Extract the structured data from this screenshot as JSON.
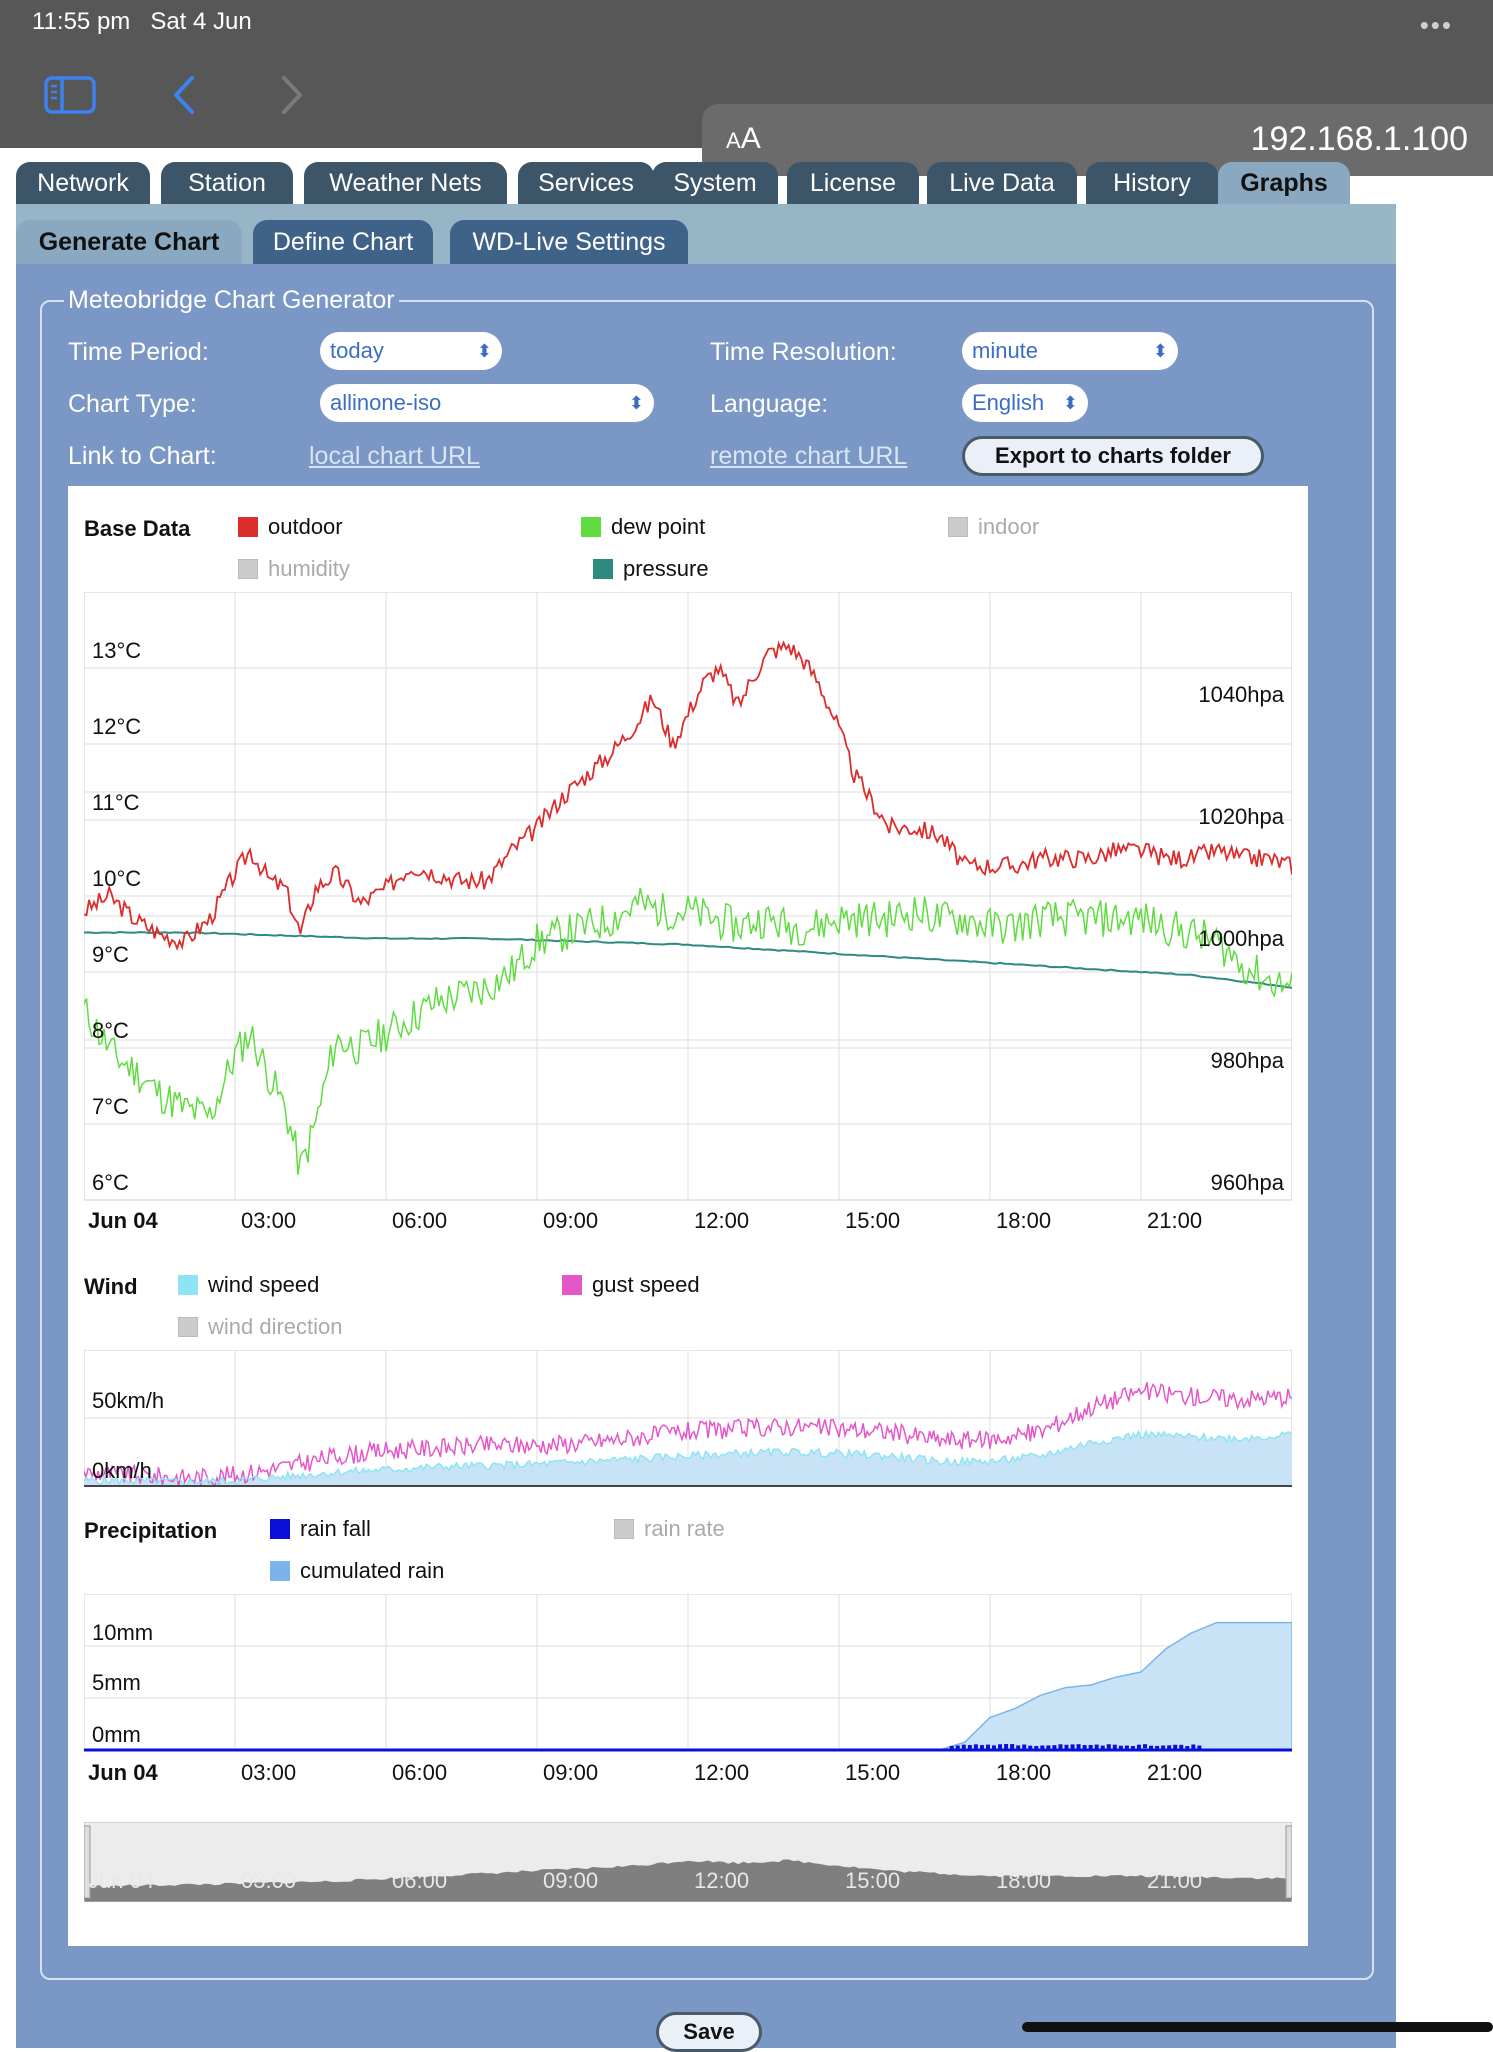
{
  "status": {
    "time": "11:55 pm",
    "date": "Sat 4 Jun"
  },
  "browser": {
    "aa_small": "A",
    "aa_large": "A",
    "url": "192.168.1.100"
  },
  "tabs": [
    "Network",
    "Station",
    "Weather Nets",
    "Services",
    "System",
    "License",
    "Live Data",
    "History",
    "Graphs"
  ],
  "active_tab": "Graphs",
  "subtabs": [
    "Generate Chart",
    "Define Chart",
    "WD-Live Settings"
  ],
  "active_subtab": "Generate Chart",
  "form": {
    "legend": "Meteobridge Chart Generator",
    "time_period_label": "Time Period:",
    "time_period_value": "today",
    "chart_type_label": "Chart Type:",
    "chart_type_value": "allinone-iso",
    "link_label": "Link to Chart:",
    "local_link": "local chart URL",
    "time_res_label": "Time Resolution:",
    "time_res_value": "minute",
    "language_label": "Language:",
    "language_value": "English",
    "remote_link": "remote chart URL",
    "export_button": "Export to charts folder",
    "save_button": "Save"
  },
  "colors": {
    "outdoor": "#dd2c2c",
    "dew_point": "#5fdc40",
    "pressure": "#2e8a80",
    "wind_speed": "#8ee3f5",
    "gust_speed": "#e457c8",
    "rain_fall": "#0a10d8",
    "cumulated_rain": "#7bb4ec"
  },
  "chart_data": [
    {
      "type": "line",
      "title": "Base Data",
      "legend": [
        "outdoor",
        "dew point",
        "indoor",
        "humidity",
        "pressure"
      ],
      "legend_disabled": [
        "indoor",
        "humidity"
      ],
      "ylabels_left": [
        "13°C",
        "12°C",
        "11°C",
        "10°C",
        "9°C",
        "8°C",
        "7°C",
        "6°C"
      ],
      "ylabels_right": [
        "1040hpa",
        "1020hpa",
        "1000hpa",
        "980hpa",
        "960hpa"
      ],
      "xlabels": [
        "Jun 04",
        "03:00",
        "06:00",
        "09:00",
        "12:00",
        "15:00",
        "18:00",
        "21:00"
      ],
      "ylim": [
        6,
        14
      ],
      "y2lim": [
        960,
        1060
      ],
      "xlim": [
        0,
        24
      ],
      "series": [
        {
          "name": "outdoor",
          "x": [
            0,
            0.5,
            1,
            1.5,
            2,
            2.5,
            3,
            3.3,
            3.7,
            4,
            4.3,
            4.6,
            5,
            5.5,
            6,
            6.5,
            7,
            7.5,
            8,
            8.5,
            9,
            9.5,
            10,
            10.5,
            11,
            11.3,
            11.7,
            12,
            12.3,
            12.6,
            13,
            13.3,
            13.6,
            14,
            14.3,
            14.6,
            15,
            15.3,
            15.7,
            16,
            16.5,
            17,
            17.5,
            18,
            18.5,
            19,
            19.5,
            20,
            20.5,
            21,
            21.5,
            22,
            22.5,
            23,
            23.5,
            24
          ],
          "y": [
            9.8,
            10.0,
            9.7,
            9.5,
            9.4,
            9.7,
            10.3,
            10.6,
            10.2,
            10.1,
            9.5,
            10.1,
            10.3,
            9.9,
            10.1,
            10.4,
            10.3,
            10.2,
            10.2,
            10.6,
            10.9,
            11.3,
            11.6,
            11.9,
            12.3,
            12.6,
            12.0,
            12.4,
            12.8,
            13.0,
            12.5,
            12.9,
            13.2,
            13.3,
            13.1,
            12.8,
            12.2,
            11.6,
            11.2,
            10.9,
            10.9,
            10.8,
            10.4,
            10.4,
            10.4,
            10.5,
            10.5,
            10.5,
            10.6,
            10.6,
            10.5,
            10.5,
            10.6,
            10.5,
            10.5,
            10.4
          ]
        },
        {
          "name": "dew point",
          "x": [
            0,
            0.3,
            0.6,
            1,
            1.5,
            2,
            2.5,
            3,
            3.3,
            3.7,
            4,
            4.3,
            4.6,
            5,
            5.5,
            6,
            6.5,
            7,
            7.5,
            8,
            8.5,
            9,
            9.5,
            10,
            10.5,
            11,
            11.5,
            12,
            12.5,
            13,
            13.5,
            14,
            14.5,
            15,
            15.5,
            16,
            16.5,
            17,
            17.5,
            18,
            18.5,
            19,
            19.5,
            20,
            20.5,
            21,
            21.5,
            22,
            22.5,
            23,
            23.5,
            24
          ],
          "y": [
            8.5,
            8.2,
            7.9,
            7.7,
            7.4,
            7.2,
            7.1,
            7.9,
            8.2,
            7.6,
            7.2,
            6.4,
            7.0,
            8.1,
            8.0,
            8.2,
            8.4,
            8.6,
            8.7,
            8.8,
            9.0,
            9.4,
            9.5,
            9.6,
            9.7,
            9.9,
            9.8,
            9.8,
            9.7,
            9.6,
            9.7,
            9.6,
            9.6,
            9.7,
            9.7,
            9.7,
            9.8,
            9.7,
            9.7,
            9.6,
            9.6,
            9.7,
            9.7,
            9.7,
            9.7,
            9.7,
            9.6,
            9.5,
            9.4,
            9.1,
            8.9,
            8.8
          ]
        },
        {
          "name": "pressure",
          "x": [
            0,
            2,
            4,
            6,
            8,
            10,
            12,
            14,
            16,
            18,
            20,
            22,
            24
          ],
          "y": [
            1004,
            1004,
            1003.5,
            1003,
            1003,
            1002.5,
            1002,
            1001,
            1000,
            999,
            998,
            997,
            995
          ]
        }
      ]
    },
    {
      "type": "area",
      "title": "Wind",
      "legend": [
        "wind speed",
        "gust speed",
        "wind direction"
      ],
      "legend_disabled": [
        "wind direction"
      ],
      "ylabels": [
        "50km/h",
        "0km/h"
      ],
      "ylim": [
        0,
        100
      ],
      "xlim": [
        0,
        24
      ],
      "series": [
        {
          "name": "wind speed",
          "x": [
            0,
            1,
            2,
            3,
            4,
            5,
            6,
            7,
            8,
            9,
            10,
            11,
            12,
            13,
            14,
            15,
            16,
            17,
            18,
            19,
            20,
            21,
            22,
            23,
            24
          ],
          "y": [
            4,
            4,
            3,
            4,
            7,
            10,
            12,
            14,
            15,
            16,
            18,
            20,
            22,
            24,
            25,
            24,
            22,
            18,
            18,
            22,
            32,
            38,
            36,
            35,
            38
          ]
        },
        {
          "name": "gust speed",
          "x": [
            0,
            1,
            2,
            3,
            4,
            5,
            6,
            7,
            8,
            9,
            10,
            11,
            12,
            13,
            14,
            15,
            16,
            17,
            18,
            19,
            20,
            21,
            22,
            23,
            24
          ],
          "y": [
            10,
            8,
            6,
            8,
            14,
            22,
            26,
            28,
            30,
            30,
            32,
            36,
            40,
            42,
            44,
            42,
            40,
            34,
            34,
            40,
            58,
            70,
            66,
            64,
            66
          ]
        }
      ]
    },
    {
      "type": "area",
      "title": "Precipitation",
      "legend": [
        "rain fall",
        "rain rate",
        "cumulated rain"
      ],
      "legend_disabled": [
        "rain rate"
      ],
      "ylabels": [
        "10mm",
        "5mm",
        "0mm"
      ],
      "xlabels": [
        "Jun 04",
        "03:00",
        "06:00",
        "09:00",
        "12:00",
        "15:00",
        "18:00",
        "21:00"
      ],
      "ylim": [
        0,
        12
      ],
      "xlim": [
        0,
        24
      ],
      "series": [
        {
          "name": "cumulated rain",
          "x": [
            0,
            17,
            17.5,
            18,
            18.5,
            19,
            19.5,
            20,
            20.5,
            21,
            21.5,
            22,
            22.5,
            24
          ],
          "y": [
            0,
            0,
            0.6,
            2.5,
            3.2,
            4.2,
            4.8,
            5.0,
            5.6,
            6.0,
            7.8,
            9.0,
            9.8,
            9.8
          ]
        },
        {
          "name": "rain fall",
          "x": [
            0,
            7,
            17,
            17.5,
            18,
            21,
            21.5,
            22,
            24
          ],
          "y": [
            0.1,
            0.1,
            0.2,
            0.4,
            0.3,
            0.2,
            0.3,
            0.2,
            0.1
          ]
        }
      ]
    },
    {
      "type": "area",
      "title": "",
      "xlabels": [
        "Jun 04",
        "03:00",
        "06:00",
        "09:00",
        "12:00",
        "15:00",
        "18:00",
        "21:00"
      ],
      "xlim": [
        0,
        24
      ],
      "series": [
        {
          "name": "overview",
          "x": [
            0,
            3,
            5,
            7,
            9,
            10,
            11,
            12,
            13,
            14,
            15,
            16,
            18,
            21,
            24
          ],
          "y": [
            0.3,
            0.35,
            0.4,
            0.5,
            0.6,
            0.65,
            0.7,
            0.8,
            0.75,
            0.8,
            0.7,
            0.6,
            0.5,
            0.5,
            0.45
          ]
        }
      ]
    }
  ]
}
